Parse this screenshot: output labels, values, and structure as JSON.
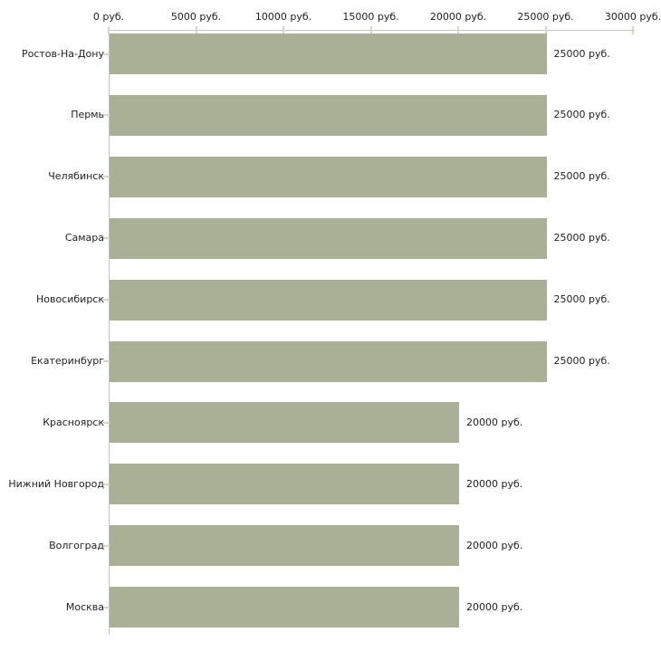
{
  "chart_data": {
    "type": "bar",
    "orientation": "horizontal",
    "title": "",
    "xlabel": "",
    "ylabel": "",
    "unit": "руб.",
    "xlim": [
      0,
      30000
    ],
    "grid": false,
    "axis_position": "top",
    "legend": null,
    "categories": [
      "Ростов-На-Дону",
      "Пермь",
      "Челябинск",
      "Самара",
      "Новосибирск",
      "Екатеринбург",
      "Красноярск",
      "Нижний Новгород",
      "Волгоград",
      "Москва"
    ],
    "values": [
      25000,
      25000,
      25000,
      25000,
      25000,
      25000,
      20000,
      20000,
      20000,
      20000
    ],
    "value_labels": [
      "25000 руб.",
      "25000 руб.",
      "25000 руб.",
      "25000 руб.",
      "25000 руб.",
      "25000 руб.",
      "20000 руб.",
      "20000 руб.",
      "20000 руб.",
      "20000 руб."
    ],
    "x_ticks": [
      0,
      5000,
      10000,
      15000,
      20000,
      25000,
      30000
    ],
    "x_tick_labels": [
      "0 руб.",
      "5000 руб.",
      "10000 руб.",
      "15000 руб.",
      "20000 руб.",
      "25000 руб.",
      "30000 руб."
    ],
    "colors": {
      "bar": "#aab096",
      "axis_line": "#c3c3c3",
      "tick": "#d6d9bf",
      "text": "#1f1f1f",
      "background": "#ffffff"
    }
  }
}
